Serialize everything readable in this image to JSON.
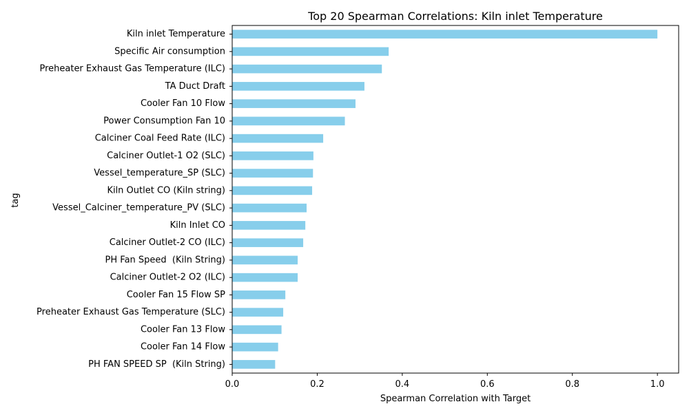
{
  "chart_data": {
    "type": "bar",
    "orientation": "horizontal",
    "title": "Top 20 Spearman Correlations: Kiln inlet Temperature",
    "xlabel": "Spearman Correlation with Target",
    "ylabel": "tag",
    "xlim": [
      0.0,
      1.05
    ],
    "xticks": [
      "0.0",
      "0.2",
      "0.4",
      "0.6",
      "0.8",
      "1.0"
    ],
    "grid": false,
    "legend": "none",
    "bar_color": "#87ceeb",
    "categories": [
      "Kiln inlet Temperature",
      "Specific Air consumption",
      "Preheater Exhaust Gas Temperature (ILC)",
      "TA Duct Draft",
      "Cooler Fan 10 Flow",
      "Power Consumption Fan 10",
      "Calciner Coal Feed Rate (ILC)",
      "Calciner Outlet-1 O2 (SLC)",
      "Vessel_temperature_SP (SLC)",
      "Kiln Outlet CO (Kiln string)",
      "Vessel_Calciner_temperature_PV (SLC)",
      "Kiln Inlet CO",
      "Calciner Outlet-2 CO (ILC)",
      "PH Fan Speed  (Kiln String)",
      "Calciner Outlet-2 O2 (ILC)",
      "Cooler Fan 15 Flow SP",
      "Preheater Exhaust Gas Temperature (SLC)",
      "Cooler Fan 13 Flow",
      "Cooler Fan 14 Flow",
      "PH FAN SPEED SP  (Kiln String)"
    ],
    "values": [
      1.0,
      0.368,
      0.352,
      0.311,
      0.29,
      0.265,
      0.214,
      0.191,
      0.19,
      0.188,
      0.175,
      0.172,
      0.167,
      0.154,
      0.154,
      0.125,
      0.12,
      0.116,
      0.108,
      0.101
    ]
  }
}
